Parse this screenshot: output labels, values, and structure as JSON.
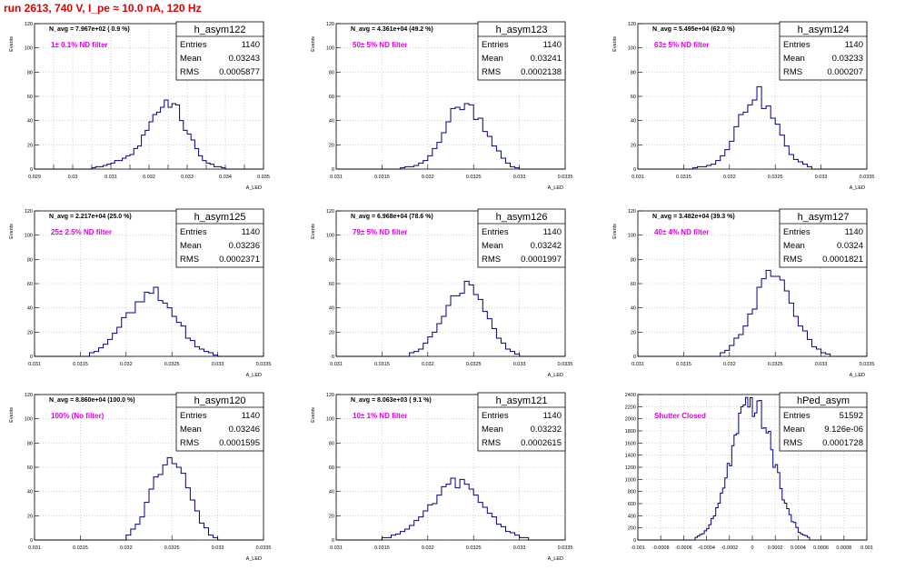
{
  "title": "run 2613,   740 V, I_pe ≈ 10.0 nA, 120 Hz",
  "colors": {
    "title": "#e00000",
    "annotation": "#e000e0",
    "histogram": "#000080",
    "grid": "#c8c8c8"
  },
  "chart_data": [
    {
      "type": "bar",
      "name": "h_asym122",
      "stats": {
        "Entries": "1140",
        "Mean": "0.03243",
        "RMS": "0.0005877"
      },
      "n_avg_text": "N_avg = 7.967e+02 ( 0.9 %)",
      "filter_text": "1± 0.1% ND filter",
      "ylabel": "Events",
      "xlabel": "A_LED",
      "xlim": [
        0.029,
        0.035
      ],
      "ylim": [
        0,
        120
      ],
      "xticks": [
        0.029,
        0.0295,
        0.03,
        0.0305,
        0.031,
        0.0315,
        0.032,
        0.0325,
        0.033,
        0.0335,
        0.034,
        0.0345,
        0.035
      ],
      "xtick_labels": [
        "0.029",
        "",
        "0.03",
        "",
        "0.031",
        "",
        "0.032",
        "",
        "0.033",
        "",
        "0.034",
        "",
        "0.035"
      ],
      "yticks": [
        0,
        20,
        40,
        60,
        80,
        100,
        120
      ],
      "bin_width": 0.0001,
      "x": [
        0.0305,
        0.0307,
        0.031,
        0.0312,
        0.0315,
        0.0318,
        0.032,
        0.0323,
        0.0325,
        0.0328,
        0.033,
        0.0333,
        0.0335,
        0.0338,
        0.034
      ],
      "values": [
        1,
        2,
        4,
        7,
        11,
        22,
        38,
        50,
        58,
        46,
        30,
        14,
        5,
        2,
        1
      ]
    },
    {
      "type": "bar",
      "name": "h_asym123",
      "stats": {
        "Entries": "1140",
        "Mean": "0.03241",
        "RMS": "0.0002138"
      },
      "n_avg_text": "N_avg = 4.361e+04 (49.2 %)",
      "filter_text": "50± 5% ND filter",
      "ylabel": "Events",
      "xlabel": "A_LED",
      "xlim": [
        0.031,
        0.0335
      ],
      "ylim": [
        0,
        120
      ],
      "xticks": [
        0.031,
        0.0315,
        0.032,
        0.0325,
        0.033,
        0.0335
      ],
      "xtick_labels": [
        "0.031",
        "0.0315",
        "0.032",
        "0.0325",
        "0.033",
        "0.0335"
      ],
      "yticks": [
        0,
        20,
        40,
        60,
        80,
        100,
        120
      ],
      "bin_width": 5e-05,
      "x": [
        0.0317,
        0.0319,
        0.032,
        0.0321,
        0.0322,
        0.0323,
        0.0324,
        0.0325,
        0.0326,
        0.0327,
        0.0328,
        0.0329,
        0.033
      ],
      "values": [
        1,
        3,
        8,
        20,
        37,
        49,
        55,
        48,
        38,
        24,
        11,
        3,
        1
      ]
    },
    {
      "type": "bar",
      "name": "h_asym124",
      "stats": {
        "Entries": "1140",
        "Mean": "0.03233",
        "RMS": "0.000207"
      },
      "n_avg_text": "N_avg = 5.495e+04 (62.0 %)",
      "filter_text": "63± 5% ND filter",
      "ylabel": "Events",
      "xlabel": "A_LED",
      "xlim": [
        0.031,
        0.0335
      ],
      "ylim": [
        0,
        120
      ],
      "xticks": [
        0.031,
        0.0315,
        0.032,
        0.0325,
        0.033,
        0.0335
      ],
      "xtick_labels": [
        "0.031",
        "0.0315",
        "0.032",
        "0.0325",
        "0.033",
        "0.0335"
      ],
      "yticks": [
        0,
        20,
        40,
        60,
        80,
        100,
        120
      ],
      "bin_width": 5e-05,
      "x": [
        0.0316,
        0.0318,
        0.0319,
        0.032,
        0.0321,
        0.0322,
        0.0323,
        0.0324,
        0.0325,
        0.0326,
        0.0327,
        0.0328,
        0.0329
      ],
      "values": [
        1,
        3,
        9,
        21,
        39,
        54,
        65,
        52,
        40,
        22,
        10,
        4,
        1
      ]
    },
    {
      "type": "bar",
      "name": "h_asym125",
      "stats": {
        "Entries": "1140",
        "Mean": "0.03236",
        "RMS": "0.0002371"
      },
      "n_avg_text": "N_avg = 2.217e+04 (25.0 %)",
      "filter_text": "25± 2.5% ND filter",
      "ylabel": "Events",
      "xlabel": "A_LED",
      "xlim": [
        0.031,
        0.0335
      ],
      "ylim": [
        0,
        120
      ],
      "xticks": [
        0.031,
        0.0315,
        0.032,
        0.0325,
        0.033,
        0.0335
      ],
      "xtick_labels": [
        "0.031",
        "0.0315",
        "0.032",
        "0.0325",
        "0.033",
        "0.0335"
      ],
      "yticks": [
        0,
        20,
        40,
        60,
        80,
        100,
        120
      ],
      "bin_width": 5e-05,
      "x": [
        0.0316,
        0.0317,
        0.0318,
        0.0319,
        0.032,
        0.0321,
        0.0322,
        0.0323,
        0.0324,
        0.0325,
        0.0326,
        0.0327,
        0.0328,
        0.0329,
        0.033
      ],
      "values": [
        2,
        5,
        12,
        22,
        32,
        38,
        48,
        54,
        45,
        38,
        26,
        14,
        6,
        3,
        1
      ]
    },
    {
      "type": "bar",
      "name": "h_asym126",
      "stats": {
        "Entries": "1140",
        "Mean": "0.03242",
        "RMS": "0.0001997"
      },
      "n_avg_text": "N_avg = 6.968e+04 (78.6 %)",
      "filter_text": "79± 5% ND filter",
      "ylabel": "Events",
      "xlabel": "A_LED",
      "xlim": [
        0.031,
        0.0335
      ],
      "ylim": [
        0,
        120
      ],
      "xticks": [
        0.031,
        0.0315,
        0.032,
        0.0325,
        0.033,
        0.0335
      ],
      "xtick_labels": [
        "0.031",
        "0.0315",
        "0.032",
        "0.0325",
        "0.033",
        "0.0335"
      ],
      "yticks": [
        0,
        20,
        40,
        60,
        80,
        100,
        120
      ],
      "bin_width": 5e-05,
      "x": [
        0.0318,
        0.0319,
        0.032,
        0.0321,
        0.0322,
        0.0323,
        0.0324,
        0.0325,
        0.0326,
        0.0327,
        0.0328,
        0.0329,
        0.033
      ],
      "values": [
        2,
        5,
        12,
        22,
        36,
        50,
        58,
        52,
        40,
        26,
        12,
        4,
        1
      ]
    },
    {
      "type": "bar",
      "name": "h_asym127",
      "stats": {
        "Entries": "1140",
        "Mean": "0.0324",
        "RMS": "0.0001821"
      },
      "n_avg_text": "N_avg = 3.482e+04 (39.3 %)",
      "filter_text": "40± 4% ND filter",
      "ylabel": "Events",
      "xlabel": "A_LED",
      "xlim": [
        0.031,
        0.0335
      ],
      "ylim": [
        0,
        120
      ],
      "xticks": [
        0.031,
        0.0315,
        0.032,
        0.0325,
        0.033,
        0.0335
      ],
      "xtick_labels": [
        "0.031",
        "0.0315",
        "0.032",
        "0.0325",
        "0.033",
        "0.0335"
      ],
      "yticks": [
        0,
        20,
        40,
        60,
        80,
        100,
        120
      ],
      "bin_width": 5e-05,
      "x": [
        0.0319,
        0.032,
        0.0321,
        0.0322,
        0.0323,
        0.0324,
        0.0325,
        0.0326,
        0.0327,
        0.0328,
        0.0329,
        0.033,
        0.0331
      ],
      "values": [
        2,
        6,
        16,
        30,
        48,
        64,
        72,
        58,
        40,
        22,
        10,
        4,
        1
      ]
    },
    {
      "type": "bar",
      "name": "h_asym120",
      "stats": {
        "Entries": "1140",
        "Mean": "0.03246",
        "RMS": "0.0001595"
      },
      "n_avg_text": "N_avg = 8.860e+04 (100.0 %)",
      "filter_text": "100% (No filter)",
      "ylabel": "Events",
      "xlabel": "A_LED",
      "xlim": [
        0.031,
        0.0335
      ],
      "ylim": [
        0,
        120
      ],
      "xticks": [
        0.031,
        0.0315,
        0.032,
        0.0325,
        0.033,
        0.0335
      ],
      "xtick_labels": [
        "0.031",
        "0.0315",
        "0.032",
        "0.0325",
        "0.033",
        "0.0335"
      ],
      "yticks": [
        0,
        20,
        40,
        60,
        80,
        100,
        120
      ],
      "bin_width": 5e-05,
      "x": [
        0.032,
        0.0321,
        0.0322,
        0.0323,
        0.0324,
        0.0325,
        0.0326,
        0.0327,
        0.0328,
        0.0329,
        0.033
      ],
      "values": [
        3,
        10,
        25,
        45,
        62,
        74,
        60,
        38,
        18,
        6,
        1
      ]
    },
    {
      "type": "bar",
      "name": "h_asym121",
      "stats": {
        "Entries": "1140",
        "Mean": "0.03232",
        "RMS": "0.0002615"
      },
      "n_avg_text": "N_avg = 8.063e+03 ( 9.1 %)",
      "filter_text": "10± 1% ND filter",
      "ylabel": "Events",
      "xlabel": "A_LED",
      "xlim": [
        0.031,
        0.0335
      ],
      "ylim": [
        0,
        120
      ],
      "xticks": [
        0.031,
        0.0315,
        0.032,
        0.0325,
        0.033,
        0.0335
      ],
      "xtick_labels": [
        "0.031",
        "0.0315",
        "0.032",
        "0.0325",
        "0.033",
        "0.0335"
      ],
      "yticks": [
        0,
        20,
        40,
        60,
        80,
        100,
        120
      ],
      "bin_width": 5e-05,
      "x": [
        0.0315,
        0.0316,
        0.0317,
        0.0318,
        0.0319,
        0.032,
        0.0321,
        0.0322,
        0.0323,
        0.0324,
        0.0325,
        0.0326,
        0.0327,
        0.0328,
        0.0329,
        0.033,
        0.0331
      ],
      "values": [
        1,
        3,
        6,
        10,
        16,
        24,
        34,
        42,
        50,
        44,
        38,
        30,
        20,
        12,
        6,
        3,
        1
      ]
    },
    {
      "type": "bar",
      "name": "hPed_asym",
      "stats": {
        "Entries": "51592",
        "Mean": "9.126e-06",
        "RMS": "0.0001728"
      },
      "n_avg_text": "",
      "filter_text": "Shutter Closed",
      "ylabel": "",
      "xlabel": "",
      "xlim": [
        -0.001,
        0.001
      ],
      "ylim": [
        0,
        2400
      ],
      "xticks": [
        -0.001,
        -0.0008,
        -0.0006,
        -0.0004,
        -0.0002,
        0,
        0.0002,
        0.0004,
        0.0006,
        0.0008,
        0.001
      ],
      "xtick_labels": [
        "-0.001",
        "-0.0008",
        "-0.0006",
        "-0.0004",
        "-0.0002",
        "0",
        "0.0002",
        "0.0004",
        "0.0006",
        "0.0008",
        "0.001"
      ],
      "yticks": [
        0,
        200,
        400,
        600,
        800,
        1000,
        1200,
        1400,
        1600,
        1800,
        2000,
        2200,
        2400
      ],
      "bin_width": 2e-05,
      "x": [
        -0.0005,
        -0.0004,
        -0.0003,
        -0.0002,
        -0.0001,
        0,
        0.0001,
        0.0002,
        0.0003,
        0.0004,
        0.0005
      ],
      "values": [
        30,
        150,
        520,
        1250,
        2000,
        2280,
        2000,
        1250,
        520,
        150,
        30
      ]
    }
  ]
}
